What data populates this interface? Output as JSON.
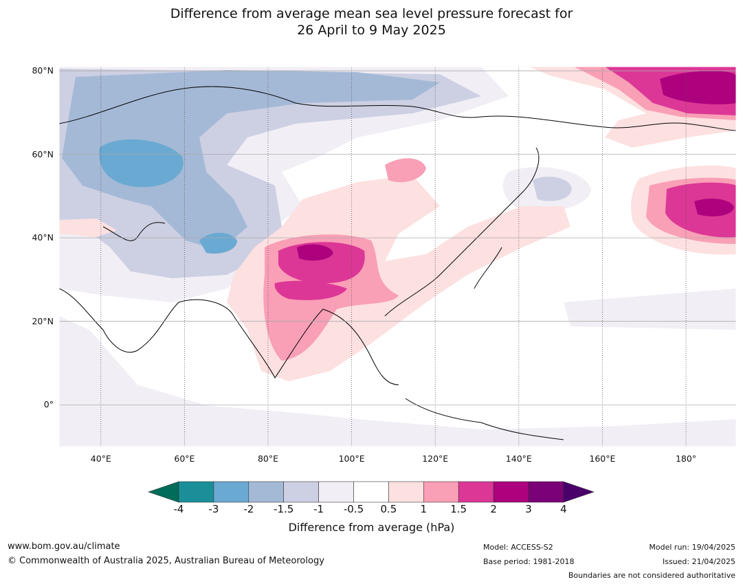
{
  "title": {
    "line1": "Difference from average mean sea level pressure forecast for",
    "line2": "26 April to 9 May 2025"
  },
  "map": {
    "lon_range": [
      30,
      192
    ],
    "lat_range": [
      -10,
      81
    ],
    "lat_ticks": [
      {
        "value": 80,
        "label": "80°N"
      },
      {
        "value": 60,
        "label": "60°N"
      },
      {
        "value": 40,
        "label": "40°N"
      },
      {
        "value": 20,
        "label": "20°N"
      },
      {
        "value": 0,
        "label": "0°"
      }
    ],
    "lon_ticks": [
      {
        "value": 40,
        "label": "40°E"
      },
      {
        "value": 60,
        "label": "60°E"
      },
      {
        "value": 80,
        "label": "80°E"
      },
      {
        "value": 100,
        "label": "100°E"
      },
      {
        "value": 120,
        "label": "120°E"
      },
      {
        "value": 140,
        "label": "140°E"
      },
      {
        "value": 160,
        "label": "160°E"
      },
      {
        "value": 180,
        "label": "180°"
      }
    ]
  },
  "colorbar": {
    "label": "Difference from average (hPa)",
    "ticks": [
      "-4",
      "-3",
      "-2",
      "-1.5",
      "-1",
      "-0.5",
      "0.5",
      "1",
      "1.5",
      "2",
      "3",
      "4"
    ],
    "colors": [
      "#1a8f99",
      "#6aa9d2",
      "#a4b9d6",
      "#cdcfe3",
      "#f1eef5",
      "#ffffff",
      "#fde0e0",
      "#f99fb6",
      "#dc3796",
      "#ae017e",
      "#7a0177"
    ],
    "under_color": "#016c59",
    "over_color": "#49006a"
  },
  "footer": {
    "website": "www.bom.gov.au/climate",
    "copyright": "© Commonwealth of Australia 2025, Australian Bureau of Meteorology",
    "model": "Model: ACCESS-S2",
    "base_period": "Base period: 1981-2018",
    "model_run": "Model run: 19/04/2025",
    "issued": "Issued: 21/04/2025",
    "disclaimer": "Boundaries are not considered authoritative"
  }
}
